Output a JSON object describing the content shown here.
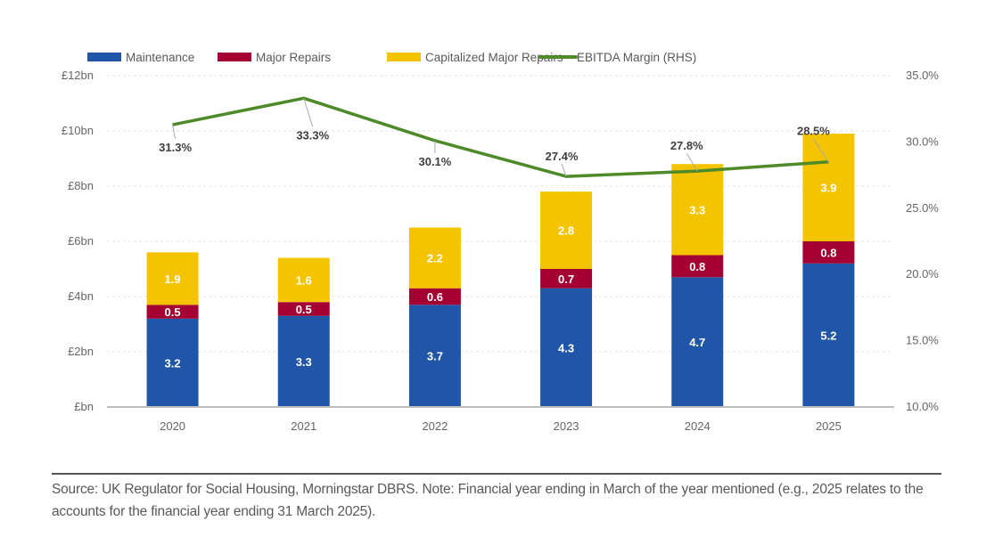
{
  "chart_data": {
    "type": "bar",
    "stacked": true,
    "categories": [
      "2020",
      "2021",
      "2022",
      "2023",
      "2024",
      "2025"
    ],
    "series": [
      {
        "name": "Maintenance",
        "color": "#1f56a8",
        "values": [
          3.2,
          3.3,
          3.7,
          4.3,
          4.7,
          5.2
        ]
      },
      {
        "name": "Major Repairs",
        "color": "#a50034",
        "values": [
          0.5,
          0.5,
          0.6,
          0.7,
          0.8,
          0.8
        ]
      },
      {
        "name": "Capitalized Major Repairs",
        "color": "#f5c400",
        "values": [
          1.9,
          1.6,
          2.2,
          2.8,
          3.3,
          3.9
        ]
      }
    ],
    "line_series": {
      "name": "EBITDA Margin (RHS)",
      "color": "#4f8a2a",
      "axis": "right",
      "values": [
        31.3,
        33.3,
        30.1,
        27.4,
        27.8,
        28.5
      ],
      "labels": [
        "31.3%",
        "33.3%",
        "30.1%",
        "27.4%",
        "27.8%",
        "28.5%"
      ],
      "label_side": [
        "below",
        "below",
        "below",
        "above",
        "above",
        "above"
      ]
    },
    "y_left": {
      "range": [
        0,
        12
      ],
      "ticks": [
        0,
        2,
        4,
        6,
        8,
        10,
        12
      ],
      "tick_labels": [
        "£bn",
        "£2bn",
        "£4bn",
        "£6bn",
        "£8bn",
        "£10bn",
        "£12bn"
      ]
    },
    "y_right": {
      "range": [
        10,
        35
      ],
      "ticks": [
        10,
        15,
        20,
        25,
        30,
        35
      ],
      "tick_labels": [
        "10.0%",
        "15.0%",
        "20.0%",
        "25.0%",
        "30.0%",
        "35.0%"
      ]
    },
    "grid": true,
    "legend_position": "top-left"
  },
  "source_note": "Source: UK Regulator for Social Housing, Morningstar DBRS. Note: Financial year ending in March of the year mentioned (e.g., 2025 relates to the accounts for the financial year ending 31 March 2025)."
}
